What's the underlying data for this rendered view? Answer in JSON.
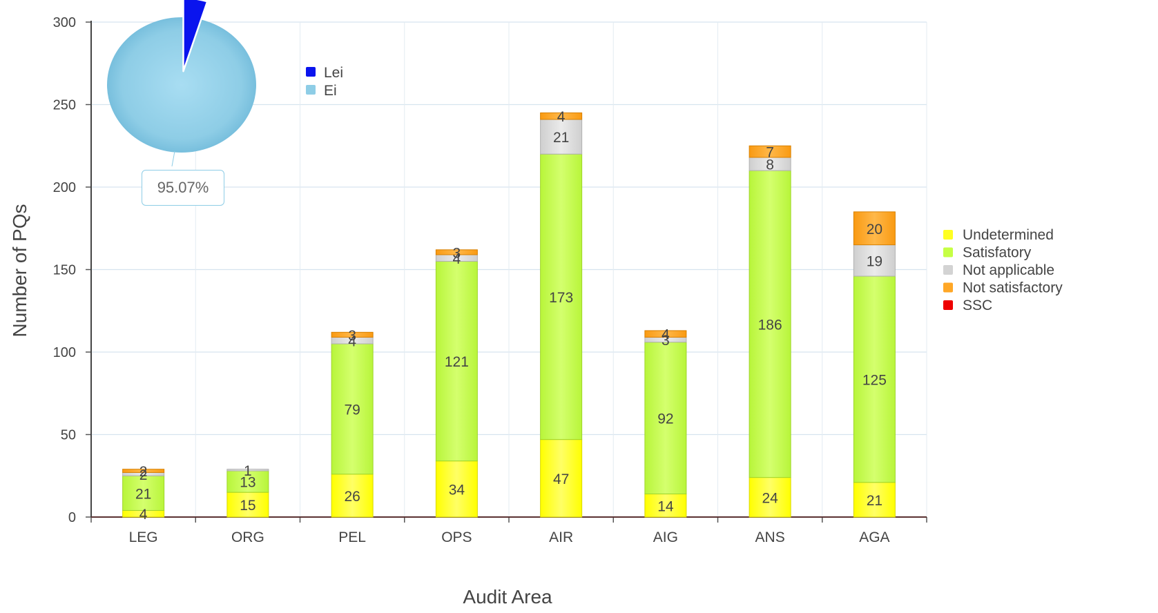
{
  "chart_data": [
    {
      "type": "bar",
      "stacked": true,
      "xlabel": "Audit Area",
      "ylabel": "Number of PQs",
      "ylim": [
        0,
        300
      ],
      "yticks": [
        0,
        50,
        100,
        150,
        200,
        250,
        300
      ],
      "grid": true,
      "legend_position": "right",
      "categories": [
        "LEG",
        "ORG",
        "PEL",
        "OPS",
        "AIR",
        "AIG",
        "ANS",
        "AGA"
      ],
      "series": [
        {
          "name": "Undetermined",
          "color": "#ffff22",
          "values": [
            4,
            15,
            26,
            34,
            47,
            14,
            24,
            21
          ]
        },
        {
          "name": "Satisfatory",
          "color": "#c6ff44",
          "values": [
            21,
            13,
            79,
            121,
            173,
            92,
            186,
            125
          ]
        },
        {
          "name": "Not applicable",
          "color": "#d3d3d3",
          "values": [
            2,
            1,
            4,
            4,
            21,
            3,
            8,
            19
          ]
        },
        {
          "name": "Not satisfactory",
          "color": "#ffa726",
          "values": [
            2,
            0,
            3,
            3,
            4,
            4,
            7,
            20
          ]
        },
        {
          "name": "SSC",
          "color": "#ee0000",
          "values": [
            0,
            0,
            0,
            0,
            0,
            0,
            0,
            0
          ]
        }
      ]
    },
    {
      "type": "pie",
      "slices": [
        {
          "name": "Lei",
          "color": "#0a14ee",
          "value": 4.93
        },
        {
          "name": "Ei",
          "color": "#8ecde6",
          "value": 95.07
        }
      ],
      "label": "95.07%",
      "legend_position": "right"
    }
  ]
}
